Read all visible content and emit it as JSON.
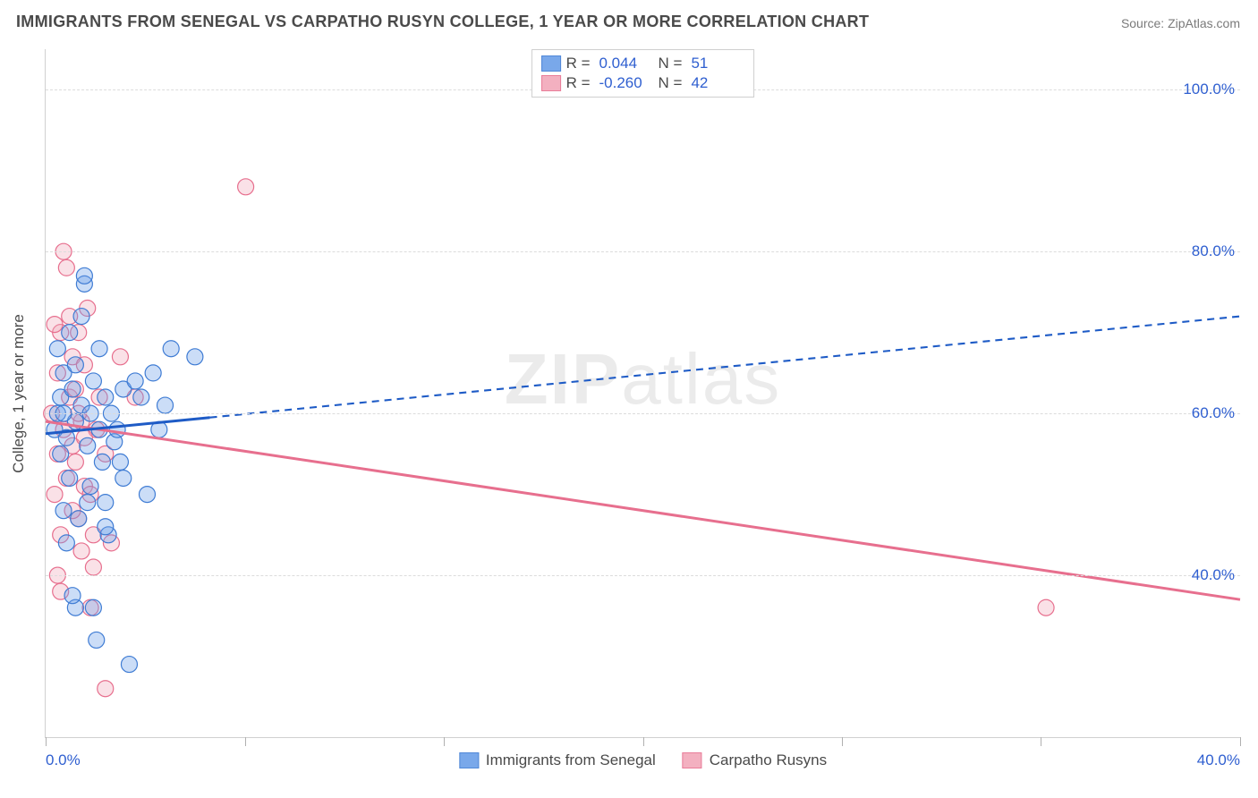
{
  "title": "IMMIGRANTS FROM SENEGAL VS CARPATHO RUSYN COLLEGE, 1 YEAR OR MORE CORRELATION CHART",
  "source": "Source: ZipAtlas.com",
  "watermark": "ZIPatlas",
  "y_axis_title": "College, 1 year or more",
  "chart": {
    "type": "scatter",
    "background_color": "#ffffff",
    "grid_color": "#dcdcdc",
    "axis_color": "#d0d0d0",
    "tick_color": "#b0b0b0",
    "label_color": "#2f5fd0",
    "label_fontsize": 17,
    "xlim": [
      0,
      40
    ],
    "ylim": [
      20,
      105
    ],
    "y_ticks": [
      40,
      60,
      80,
      100
    ],
    "y_tick_labels": [
      "40.0%",
      "60.0%",
      "80.0%",
      "100.0%"
    ],
    "x_tick_positions": [
      0,
      6.67,
      13.33,
      20,
      26.67,
      33.33,
      40
    ],
    "x_tick_labels_shown": {
      "0": "0.0%",
      "40": "40.0%"
    },
    "marker_radius": 9,
    "marker_stroke_width": 1.2,
    "marker_fill_opacity": 0.35,
    "trend_line_width": 3,
    "trend_dash_pattern": "8 6"
  },
  "series": {
    "senegal": {
      "label": "Immigrants from Senegal",
      "color": "#6b9fe8",
      "stroke": "#3f7cd4",
      "trend_color": "#1e5bc6",
      "R": "0.044",
      "N": "51",
      "trend": {
        "x1": 0,
        "y1": 57.5,
        "x2": 40,
        "y2": 72,
        "solid_until_x": 5.5
      },
      "points": [
        [
          0.3,
          58
        ],
        [
          0.4,
          60
        ],
        [
          0.5,
          55
        ],
        [
          0.5,
          62
        ],
        [
          0.6,
          48
        ],
        [
          0.6,
          65
        ],
        [
          0.7,
          57
        ],
        [
          0.8,
          70
        ],
        [
          0.8,
          52
        ],
        [
          0.9,
          63
        ],
        [
          1.0,
          59
        ],
        [
          1.0,
          66
        ],
        [
          1.1,
          47
        ],
        [
          1.2,
          61
        ],
        [
          1.2,
          72
        ],
        [
          1.3,
          76
        ],
        [
          1.3,
          77
        ],
        [
          1.4,
          56
        ],
        [
          1.5,
          60
        ],
        [
          1.5,
          51
        ],
        [
          1.6,
          36
        ],
        [
          1.6,
          64
        ],
        [
          1.7,
          32
        ],
        [
          1.8,
          58
        ],
        [
          1.8,
          68
        ],
        [
          1.9,
          54
        ],
        [
          2.0,
          62
        ],
        [
          2.0,
          49
        ],
        [
          2.1,
          45
        ],
        [
          2.2,
          60
        ],
        [
          2.3,
          56.5
        ],
        [
          2.4,
          58
        ],
        [
          2.5,
          54
        ],
        [
          2.6,
          63
        ],
        [
          2.8,
          29
        ],
        [
          3.0,
          64
        ],
        [
          3.2,
          62
        ],
        [
          3.4,
          50
        ],
        [
          3.6,
          65
        ],
        [
          3.8,
          58
        ],
        [
          4.0,
          61
        ],
        [
          4.2,
          68
        ],
        [
          5.0,
          67
        ],
        [
          1.0,
          36
        ],
        [
          0.9,
          37.5
        ],
        [
          0.7,
          44
        ],
        [
          1.4,
          49
        ],
        [
          2.0,
          46
        ],
        [
          2.6,
          52
        ],
        [
          0.6,
          60
        ],
        [
          0.4,
          68
        ]
      ]
    },
    "carpatho": {
      "label": "Carpatho Rusyns",
      "color": "#f2a8ba",
      "stroke": "#e76f8e",
      "trend_color": "#e76f8e",
      "R": "-0.260",
      "N": "42",
      "trend": {
        "x1": 0,
        "y1": 59,
        "x2": 40,
        "y2": 37,
        "solid_until_x": 40
      },
      "points": [
        [
          0.2,
          60
        ],
        [
          0.3,
          50
        ],
        [
          0.4,
          65
        ],
        [
          0.4,
          55
        ],
        [
          0.5,
          70
        ],
        [
          0.5,
          45
        ],
        [
          0.6,
          80
        ],
        [
          0.6,
          58
        ],
        [
          0.7,
          78
        ],
        [
          0.7,
          52
        ],
        [
          0.8,
          62
        ],
        [
          0.8,
          72
        ],
        [
          0.9,
          56
        ],
        [
          0.9,
          67
        ],
        [
          1.0,
          54
        ],
        [
          1.0,
          63
        ],
        [
          1.1,
          47
        ],
        [
          1.1,
          70
        ],
        [
          1.2,
          59
        ],
        [
          1.2,
          43
        ],
        [
          1.3,
          66
        ],
        [
          1.3,
          51
        ],
        [
          1.4,
          73
        ],
        [
          1.5,
          50
        ],
        [
          1.6,
          45
        ],
        [
          1.6,
          41
        ],
        [
          1.7,
          58
        ],
        [
          1.8,
          62
        ],
        [
          2.0,
          55
        ],
        [
          2.0,
          26
        ],
        [
          2.2,
          44
        ],
        [
          0.4,
          40
        ],
        [
          2.5,
          67
        ],
        [
          3.0,
          62
        ],
        [
          6.7,
          88
        ],
        [
          1.5,
          36
        ],
        [
          0.5,
          38
        ],
        [
          0.9,
          48
        ],
        [
          1.1,
          60
        ],
        [
          1.3,
          57
        ],
        [
          33.5,
          36
        ],
        [
          0.3,
          71
        ]
      ]
    }
  },
  "legend_top": {
    "r_label": "R =",
    "n_label": "N ="
  }
}
